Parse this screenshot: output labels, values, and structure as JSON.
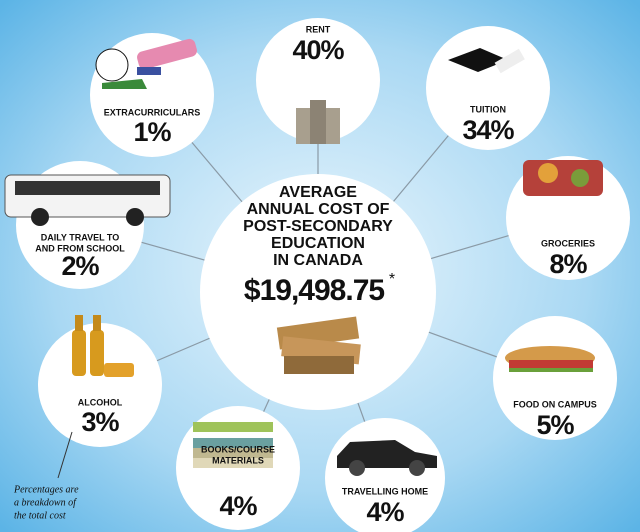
{
  "header": {
    "title_lines": [
      "AVERAGE",
      "ANNUAL COST OF",
      "POST-SECONDARY",
      "EDUCATION",
      "IN CANADA"
    ],
    "total": "$19,498.75",
    "total_marker": "*"
  },
  "nodes": [
    {
      "label": [
        "RENT"
      ],
      "value": "40%"
    },
    {
      "label": [
        "TUITION"
      ],
      "value": "34%"
    },
    {
      "label": [
        "GROCERIES"
      ],
      "value": "8%"
    },
    {
      "label": [
        "FOOD ON CAMPUS"
      ],
      "value": "5%"
    },
    {
      "label": [
        "TRAVELLING HOME"
      ],
      "value": "4%"
    },
    {
      "label": [
        "BOOKS/COURSE",
        "MATERIALS"
      ],
      "value": "4%"
    },
    {
      "label": [
        "ALCOHOL"
      ],
      "value": "3%"
    },
    {
      "label": [
        "DAILY TRAVEL TO",
        "AND FROM SCHOOL"
      ],
      "value": "2%"
    },
    {
      "label": [
        "EXTRACURRICULARS"
      ],
      "value": "1%"
    }
  ],
  "note": [
    "Percentages are",
    "a breakdown of",
    "the total cost"
  ]
}
